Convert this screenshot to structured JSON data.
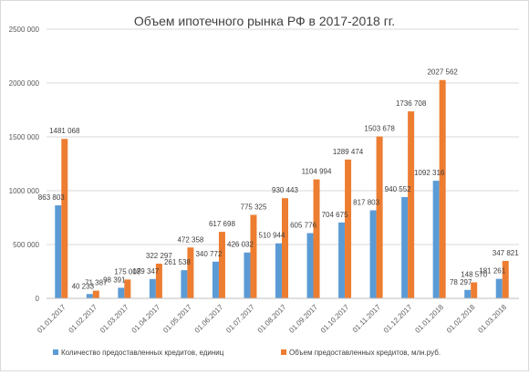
{
  "chart_data": {
    "type": "bar",
    "title": "Объем ипотечного рынка РФ в 2017-2018 гг.",
    "xlabel": "",
    "ylabel": "",
    "ylim": [
      0,
      2500000
    ],
    "yticks": [
      0,
      500000,
      1000000,
      1500000,
      2000000,
      2500000
    ],
    "ytick_labels": [
      "0",
      "500 000",
      "1000 000",
      "1500 000",
      "2000 000",
      "2500 000"
    ],
    "grid": true,
    "legend_position": "bottom",
    "categories": [
      "01.01.2017",
      "01.02.2017",
      "01.03.2017",
      "01.04.2017",
      "01.05.2017",
      "01.06.2017",
      "01.07.2017",
      "01.08.2017",
      "01.09.2017",
      "01.10.2017",
      "01.11.2017",
      "01.12.2017",
      "01.01.2018",
      "01.02.2018",
      "01.03.2018"
    ],
    "series": [
      {
        "name": "Количество предоставленных кредитов, единиц",
        "color": "#5B9BD5",
        "values": [
          863803,
          40233,
          98391,
          179347,
          261538,
          340772,
          426032,
          510944,
          605776,
          704675,
          817803,
          940552,
          1092316,
          78297,
          181261
        ],
        "labels": [
          "863 803",
          "40 233",
          "98 391",
          "179 347",
          "261 538",
          "340 772",
          "426 032",
          "510 944",
          "605 776",
          "704 675",
          "817 803",
          "940 552",
          "1092 316",
          "78 297",
          "181 261"
        ]
      },
      {
        "name": "Объем предоставленных кредитов, млн.руб.",
        "color": "#ED7D31",
        "values": [
          1481068,
          71387,
          175008,
          322297,
          472358,
          617698,
          775325,
          930443,
          1104994,
          1289474,
          1503678,
          1736708,
          2027562,
          148570,
          347821
        ],
        "labels": [
          "1481 068",
          "71 387",
          "175 008",
          "322 297",
          "472 358",
          "617 698",
          "775 325",
          "930 443",
          "1104 994",
          "1289 474",
          "1503 678",
          "1736 708",
          "2027 562",
          "148 570",
          "347 821"
        ]
      }
    ]
  }
}
